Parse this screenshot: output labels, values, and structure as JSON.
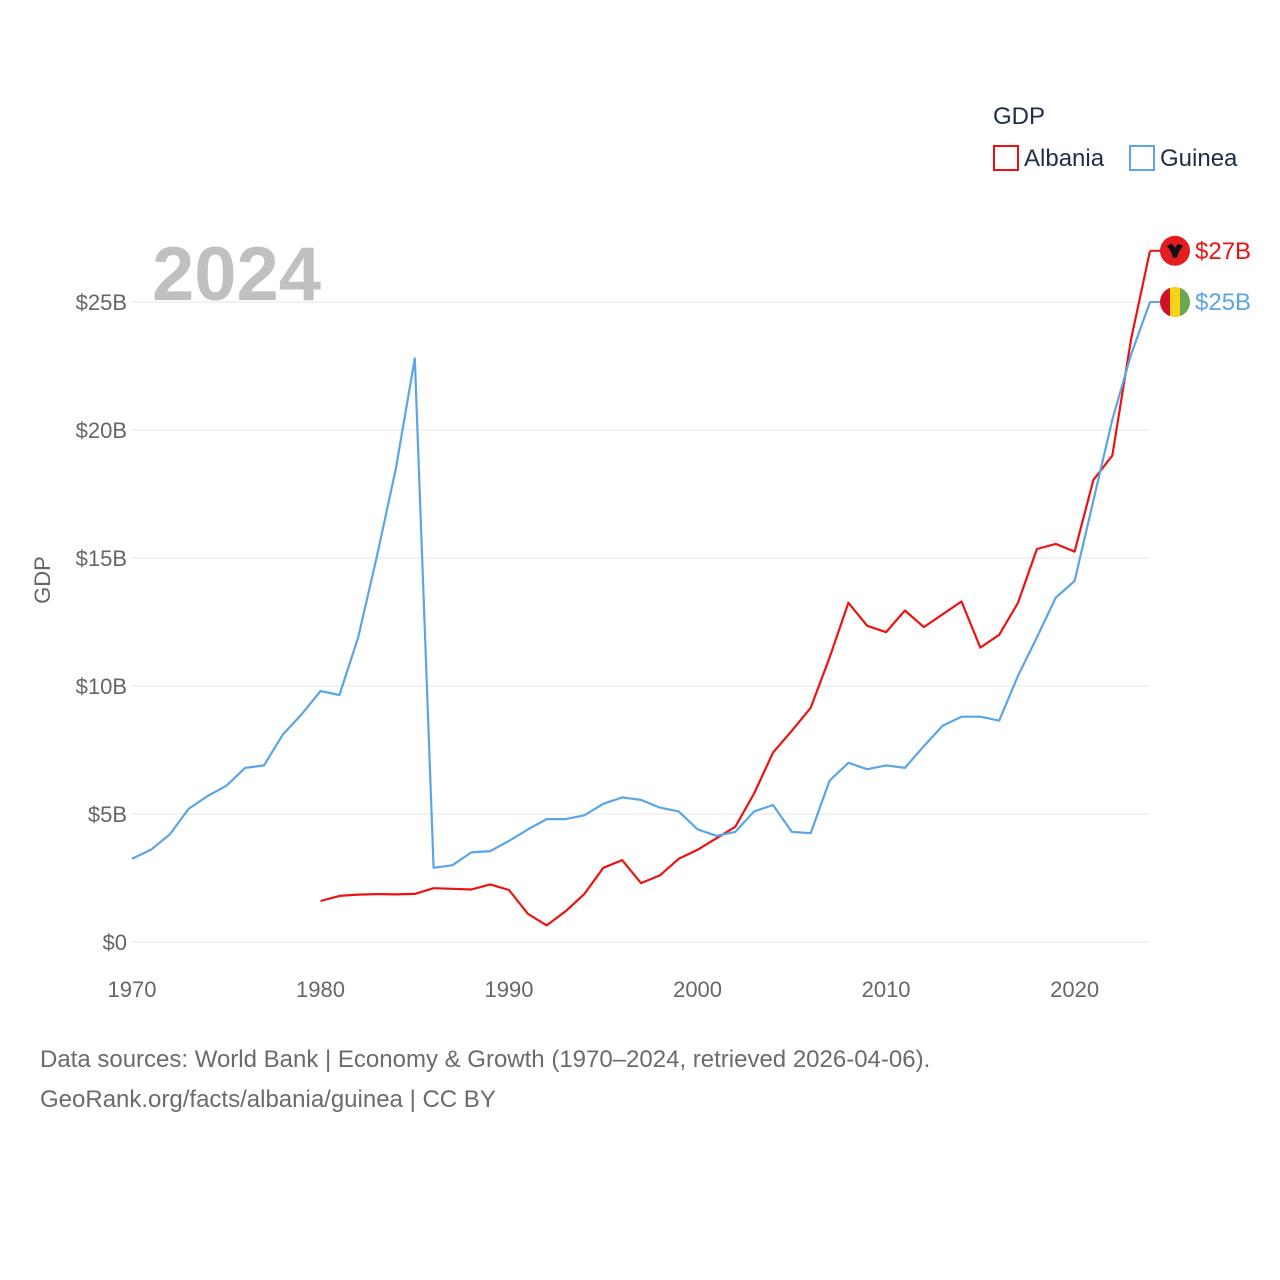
{
  "chart_data": {
    "type": "line",
    "title": "2024",
    "ylabel": "GDP",
    "xlabel": "",
    "xlim": [
      1970,
      2024
    ],
    "ylim": [
      0,
      26.5
    ],
    "x_ticks": [
      1970,
      1980,
      1990,
      2000,
      2010,
      2020
    ],
    "x_tick_labels": [
      "1970",
      "1980",
      "1990",
      "2000",
      "2010",
      "2020"
    ],
    "y_ticks": [
      0,
      5,
      10,
      15,
      20,
      25
    ],
    "y_tick_labels": [
      "$0",
      "$5B",
      "$10B",
      "$15B",
      "$20B",
      "$25B"
    ],
    "legend": {
      "title": "GDP",
      "position": "top-right"
    },
    "colors": {
      "Albania": "#ee1111",
      "Guinea": "#5aa5e6"
    },
    "series": [
      {
        "name": "Albania",
        "end_label": "$27B",
        "x": [
          1980,
          1981,
          1982,
          1983,
          1984,
          1985,
          1986,
          1987,
          1988,
          1989,
          1990,
          1991,
          1992,
          1993,
          1994,
          1995,
          1996,
          1997,
          1998,
          1999,
          2000,
          2001,
          2002,
          2003,
          2004,
          2005,
          2006,
          2007,
          2008,
          2009,
          2010,
          2011,
          2012,
          2013,
          2014,
          2015,
          2016,
          2017,
          2018,
          2019,
          2020,
          2021,
          2022,
          2023,
          2024
        ],
        "values": [
          1.6,
          1.8,
          1.85,
          1.87,
          1.86,
          1.88,
          2.1,
          2.08,
          2.05,
          2.25,
          2.03,
          1.1,
          0.65,
          1.2,
          1.88,
          2.9,
          3.2,
          2.3,
          2.6,
          3.25,
          3.6,
          4.05,
          4.5,
          5.8,
          7.4,
          8.25,
          9.15,
          11.1,
          13.25,
          12.35,
          12.1,
          12.95,
          12.3,
          12.8,
          13.3,
          11.5,
          12.0,
          13.25,
          15.35,
          15.55,
          15.25,
          18.05,
          19.0,
          23.55,
          27.0
        ]
      },
      {
        "name": "Guinea",
        "end_label": "$25B",
        "x": [
          1970,
          1971,
          1972,
          1973,
          1974,
          1975,
          1976,
          1977,
          1978,
          1979,
          1980,
          1981,
          1982,
          1983,
          1984,
          1985,
          1986,
          1987,
          1988,
          1989,
          1990,
          1991,
          1992,
          1993,
          1994,
          1995,
          1996,
          1997,
          1998,
          1999,
          2000,
          2001,
          2002,
          2003,
          2004,
          2005,
          2006,
          2007,
          2008,
          2009,
          2010,
          2011,
          2012,
          2013,
          2014,
          2015,
          2016,
          2017,
          2018,
          2019,
          2020,
          2021,
          2022,
          2023,
          2024
        ],
        "values": [
          3.25,
          3.6,
          4.2,
          5.2,
          5.7,
          6.1,
          6.8,
          6.9,
          8.1,
          8.9,
          9.8,
          9.65,
          11.9,
          15.1,
          18.5,
          22.8,
          2.9,
          3.0,
          3.5,
          3.55,
          3.95,
          4.4,
          4.8,
          4.8,
          4.95,
          5.4,
          5.65,
          5.55,
          5.25,
          5.1,
          4.4,
          4.15,
          4.3,
          5.1,
          5.35,
          4.3,
          4.25,
          6.3,
          7.0,
          6.75,
          6.9,
          6.8,
          7.65,
          8.45,
          8.8,
          8.8,
          8.65,
          10.4,
          11.9,
          13.45,
          14.1,
          17.25,
          20.4,
          22.95,
          25.0
        ]
      }
    ]
  },
  "footer": {
    "line1": "Data sources: World Bank | Economy & Growth (1970–2024, retrieved 2026-04-06).",
    "line2": "GeoRank.org/facts/albania/guinea | CC BY"
  }
}
